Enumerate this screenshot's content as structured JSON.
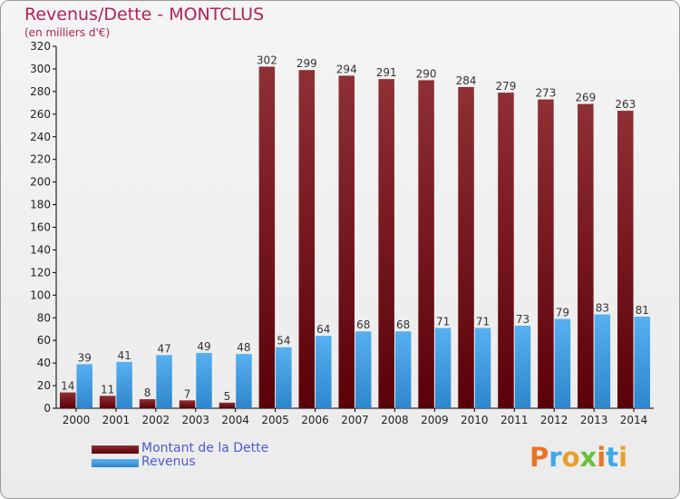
{
  "title": "Revenus/Dette - MONTCLUS",
  "subtitle": "(en milliers d'€)",
  "colors": {
    "dette": "#7a1418",
    "revenus": "#3f9fe6",
    "title": "#b1225a",
    "legend_text": "#4a5bd6"
  },
  "legend": [
    {
      "label": "Montant de la Dette",
      "color": "#7a1418"
    },
    {
      "label": "Revenus",
      "color": "#3f9fe6"
    }
  ],
  "logo": {
    "text": "Proxiti"
  },
  "chart_data": {
    "type": "bar",
    "categories": [
      "2000",
      "2001",
      "2002",
      "2003",
      "2004",
      "2005",
      "2006",
      "2007",
      "2008",
      "2009",
      "2010",
      "2011",
      "2012",
      "2013",
      "2014"
    ],
    "series": [
      {
        "name": "Montant de la Dette",
        "values": [
          14,
          11,
          8,
          7,
          5,
          302,
          299,
          294,
          291,
          290,
          284,
          279,
          273,
          269,
          263
        ]
      },
      {
        "name": "Revenus",
        "values": [
          39,
          41,
          47,
          49,
          48,
          54,
          64,
          68,
          68,
          71,
          71,
          73,
          79,
          83,
          81
        ]
      }
    ],
    "ylim": [
      0,
      320
    ],
    "yticks": [
      0,
      20,
      40,
      60,
      80,
      100,
      120,
      140,
      160,
      180,
      200,
      220,
      240,
      260,
      280,
      300,
      320
    ],
    "grid": false,
    "legend_position": "bottom-left"
  }
}
